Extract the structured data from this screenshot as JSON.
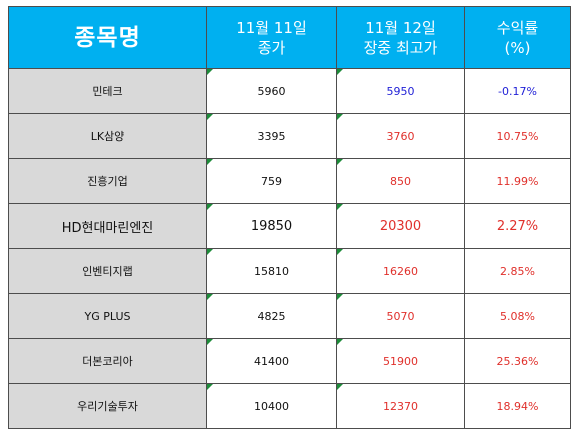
{
  "header": {
    "name": "종목명",
    "col2_line1": "11월 11일",
    "col2_line2": "종가",
    "col3_line1": "11월 12일",
    "col3_line2": "장중 최고가",
    "col4_line1": "수익률",
    "col4_line2": "(%)"
  },
  "rows": [
    {
      "name": "민테크",
      "close": "5960",
      "high": "5950",
      "ret": "-0.17%"
    },
    {
      "name": "LK삼양",
      "close": "3395",
      "high": "3760",
      "ret": "10.75%"
    },
    {
      "name": "진흥기업",
      "close": "759",
      "high": "850",
      "ret": "11.99%"
    },
    {
      "name": "HD현대마린엔진",
      "close": "19850",
      "high": "20300",
      "ret": "2.27%"
    },
    {
      "name": "인벤티지랩",
      "close": "15810",
      "high": "16260",
      "ret": "2.85%"
    },
    {
      "name": "YG PLUS",
      "close": "4825",
      "high": "5070",
      "ret": "5.08%"
    },
    {
      "name": "더본코리아",
      "close": "41400",
      "high": "51900",
      "ret": "25.36%"
    },
    {
      "name": "우리기술투자",
      "close": "10400",
      "high": "12370",
      "ret": "18.94%"
    }
  ],
  "colors": {
    "header_bg": "#00b0f0",
    "name_bg": "#d9d9d9",
    "negative": "#1f1fd6",
    "positive": "#e0302b",
    "cell_marker": "#1e8c3a"
  }
}
